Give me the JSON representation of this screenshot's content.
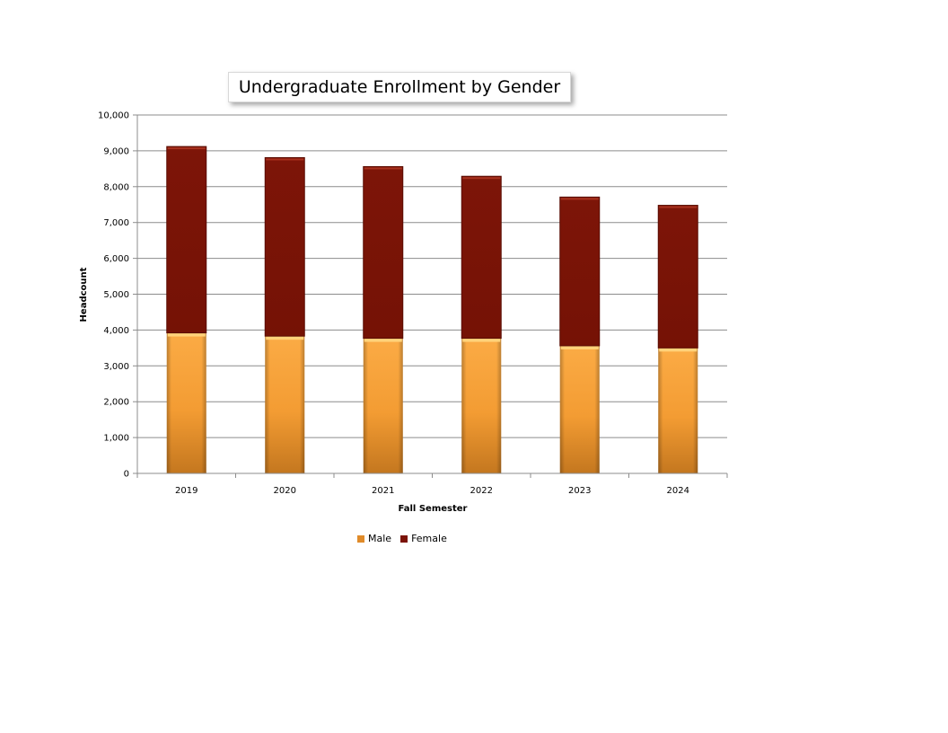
{
  "chart_data": {
    "type": "bar",
    "stacked": true,
    "title": "Undergraduate Enrollment by Gender",
    "xlabel": "Fall Semester",
    "ylabel": "Headcount",
    "categories": [
      "2019",
      "2020",
      "2021",
      "2022",
      "2023",
      "2024"
    ],
    "series": [
      {
        "name": "Male",
        "values": [
          3920,
          3830,
          3770,
          3770,
          3560,
          3500
        ],
        "color": "#f59c34"
      },
      {
        "name": "Female",
        "values": [
          5200,
          4980,
          4790,
          4520,
          4150,
          3980
        ],
        "color": "#7b1307"
      }
    ],
    "ylim": [
      0,
      10000
    ],
    "yticks": [
      0,
      1000,
      2000,
      3000,
      4000,
      5000,
      6000,
      7000,
      8000,
      9000,
      10000
    ],
    "ytick_labels": [
      "0",
      "1,000",
      "2,000",
      "3,000",
      "4,000",
      "5,000",
      "6,000",
      "7,000",
      "8,000",
      "9,000",
      "10,000"
    ],
    "grid": true,
    "legend": "bottom"
  }
}
